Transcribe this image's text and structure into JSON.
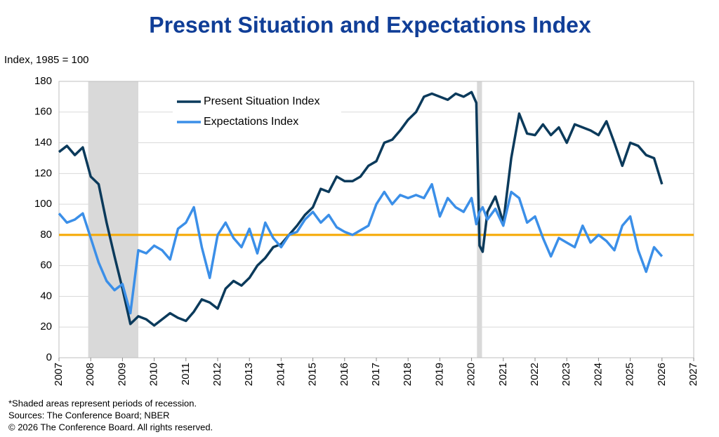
{
  "chart_data": {
    "type": "line",
    "title": "Present Situation and Expectations Index",
    "y_label": "Index, 1985 = 100",
    "notes": [
      "*Shaded areas represent periods of recession.",
      "Sources:  The Conference Board;  NBER",
      "© 2026 The Conference Board. All rights reserved."
    ],
    "x": [
      2007,
      2007.25,
      2007.5,
      2007.75,
      2008,
      2008.25,
      2008.5,
      2008.75,
      2009,
      2009.25,
      2009.5,
      2009.75,
      2010,
      2010.25,
      2010.5,
      2010.75,
      2011,
      2011.25,
      2011.5,
      2011.75,
      2012,
      2012.25,
      2012.5,
      2012.75,
      2013,
      2013.25,
      2013.5,
      2013.75,
      2014,
      2014.25,
      2014.5,
      2014.75,
      2015,
      2015.25,
      2015.5,
      2015.75,
      2016,
      2016.25,
      2016.5,
      2016.75,
      2017,
      2017.25,
      2017.5,
      2017.75,
      2018,
      2018.25,
      2018.5,
      2018.75,
      2019,
      2019.25,
      2019.5,
      2019.75,
      2020,
      2020.15,
      2020.25,
      2020.35,
      2020.5,
      2020.75,
      2021,
      2021.25,
      2021.5,
      2021.75,
      2022,
      2022.25,
      2022.5,
      2022.75,
      2023,
      2023.25,
      2023.5,
      2023.75,
      2024,
      2024.25,
      2024.5,
      2024.75,
      2025,
      2025.25,
      2025.5,
      2025.75,
      2026
    ],
    "series": [
      {
        "name": "Present Situation Index",
        "color": "#0b3a5b",
        "values": [
          134,
          138,
          132,
          137,
          118,
          113,
          88,
          66,
          45,
          22,
          27,
          25,
          21,
          25,
          29,
          26,
          24,
          30,
          38,
          36,
          32,
          45,
          50,
          47,
          52,
          60,
          65,
          72,
          74,
          80,
          86,
          93,
          98,
          110,
          108,
          118,
          115,
          115,
          118,
          125,
          128,
          140,
          142,
          148,
          155,
          160,
          170,
          172,
          170,
          168,
          172,
          170,
          173,
          166,
          73,
          69,
          95,
          105,
          88,
          130,
          159,
          146,
          145,
          152,
          145,
          150,
          140,
          152,
          150,
          148,
          145,
          154,
          140,
          125,
          140,
          138,
          132,
          130,
          113
        ]
      },
      {
        "name": "Expectations Index",
        "color": "#3b8fe8",
        "values": [
          94,
          88,
          90,
          94,
          78,
          62,
          50,
          44,
          48,
          29,
          70,
          68,
          73,
          70,
          64,
          84,
          88,
          98,
          72,
          52,
          80,
          88,
          78,
          72,
          84,
          68,
          88,
          78,
          72,
          80,
          82,
          90,
          95,
          88,
          93,
          85,
          82,
          80,
          83,
          86,
          100,
          108,
          100,
          106,
          104,
          106,
          104,
          113,
          92,
          104,
          98,
          95,
          104,
          87,
          95,
          98,
          90,
          97,
          86,
          108,
          104,
          88,
          92,
          78,
          66,
          78,
          75,
          72,
          86,
          75,
          80,
          76,
          70,
          86,
          92,
          70,
          56,
          72,
          66
        ]
      }
    ],
    "recessions": [
      [
        2007.92,
        2009.5
      ],
      [
        2020.17,
        2020.33
      ]
    ],
    "recession_color": "#d9d9d9",
    "reference_line": {
      "value": 80,
      "color": "#f5a800"
    },
    "xlim": [
      2007,
      2027
    ],
    "xticks": [
      2007,
      2008,
      2009,
      2010,
      2011,
      2012,
      2013,
      2014,
      2015,
      2016,
      2017,
      2018,
      2019,
      2020,
      2021,
      2022,
      2023,
      2024,
      2025,
      2026,
      2027
    ],
    "ylim": [
      0,
      180
    ],
    "yticks": [
      0,
      20,
      40,
      60,
      80,
      100,
      120,
      140,
      160,
      180
    ],
    "grid": true,
    "legend": "upper left"
  }
}
